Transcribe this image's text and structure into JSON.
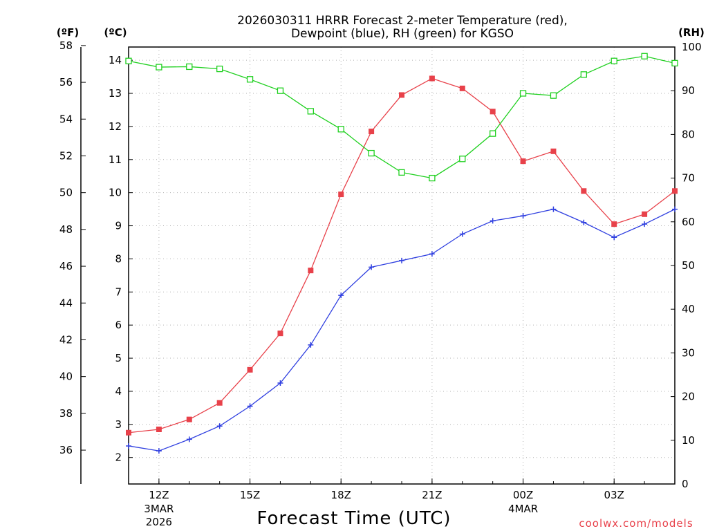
{
  "chart_data": {
    "type": "line",
    "title_line1": "2026030311 HRRR Forecast 2-meter Temperature (red),",
    "title_line2": "Dewpoint (blue), RH (green) for KGSO",
    "xlabel": "Forecast Time (UTC)",
    "credit": "coolwx.com/models",
    "units": {
      "fahrenheit": "(ºF)",
      "celsius": "(ºC)",
      "rh": "(RH)"
    },
    "x_hours": [
      11,
      12,
      13,
      14,
      15,
      16,
      17,
      18,
      19,
      20,
      21,
      22,
      23,
      24,
      25,
      26,
      27,
      28,
      29
    ],
    "x_range": [
      11,
      29
    ],
    "x_ticks": [
      {
        "hour": 12,
        "label": "12Z",
        "sub": [
          "3MAR",
          "2026"
        ]
      },
      {
        "hour": 15,
        "label": "15Z",
        "sub": []
      },
      {
        "hour": 18,
        "label": "18Z",
        "sub": []
      },
      {
        "hour": 21,
        "label": "21Z",
        "sub": []
      },
      {
        "hour": 24,
        "label": "00Z",
        "sub": [
          "4MAR"
        ]
      },
      {
        "hour": 27,
        "label": "03Z",
        "sub": []
      }
    ],
    "celsius_axis": {
      "range": [
        1.2,
        14.4
      ],
      "ticks": [
        "2",
        "3",
        "4",
        "5",
        "6",
        "7",
        "8",
        "9",
        "10",
        "11",
        "12",
        "13",
        "14"
      ]
    },
    "fahrenheit_axis": {
      "range": [
        34.16,
        57.92
      ],
      "ticks": [
        "36",
        "38",
        "40",
        "42",
        "44",
        "46",
        "48",
        "50",
        "52",
        "54",
        "56",
        "58"
      ]
    },
    "rh_axis": {
      "range": [
        0,
        100
      ],
      "ticks": [
        "0",
        "10",
        "20",
        "30",
        "40",
        "50",
        "60",
        "70",
        "80",
        "90",
        "100"
      ]
    },
    "series": [
      {
        "name": "Temperature",
        "axis": "celsius",
        "color": "#e8414a",
        "marker": "filled-square",
        "values": [
          2.75,
          2.85,
          3.15,
          3.65,
          4.65,
          5.75,
          7.65,
          9.95,
          11.85,
          12.95,
          13.45,
          13.15,
          12.45,
          10.95,
          11.25,
          10.05,
          9.05,
          9.35,
          10.05
        ]
      },
      {
        "name": "Dewpoint",
        "axis": "celsius",
        "color": "#2f3fe0",
        "marker": "plus",
        "values": [
          2.35,
          2.2,
          2.55,
          2.95,
          3.55,
          4.25,
          5.4,
          6.9,
          7.75,
          7.95,
          8.15,
          8.75,
          9.15,
          9.3,
          9.5,
          9.1,
          8.65,
          9.05,
          9.5
        ]
      },
      {
        "name": "RH",
        "axis": "rh",
        "color": "#1fd01f",
        "marker": "open-square",
        "values": [
          96.8,
          95.4,
          95.5,
          95.0,
          92.6,
          90.0,
          85.3,
          81.2,
          75.7,
          71.3,
          70.0,
          74.4,
          80.2,
          89.4,
          88.9,
          93.7,
          96.8,
          97.9,
          96.3
        ]
      }
    ]
  }
}
